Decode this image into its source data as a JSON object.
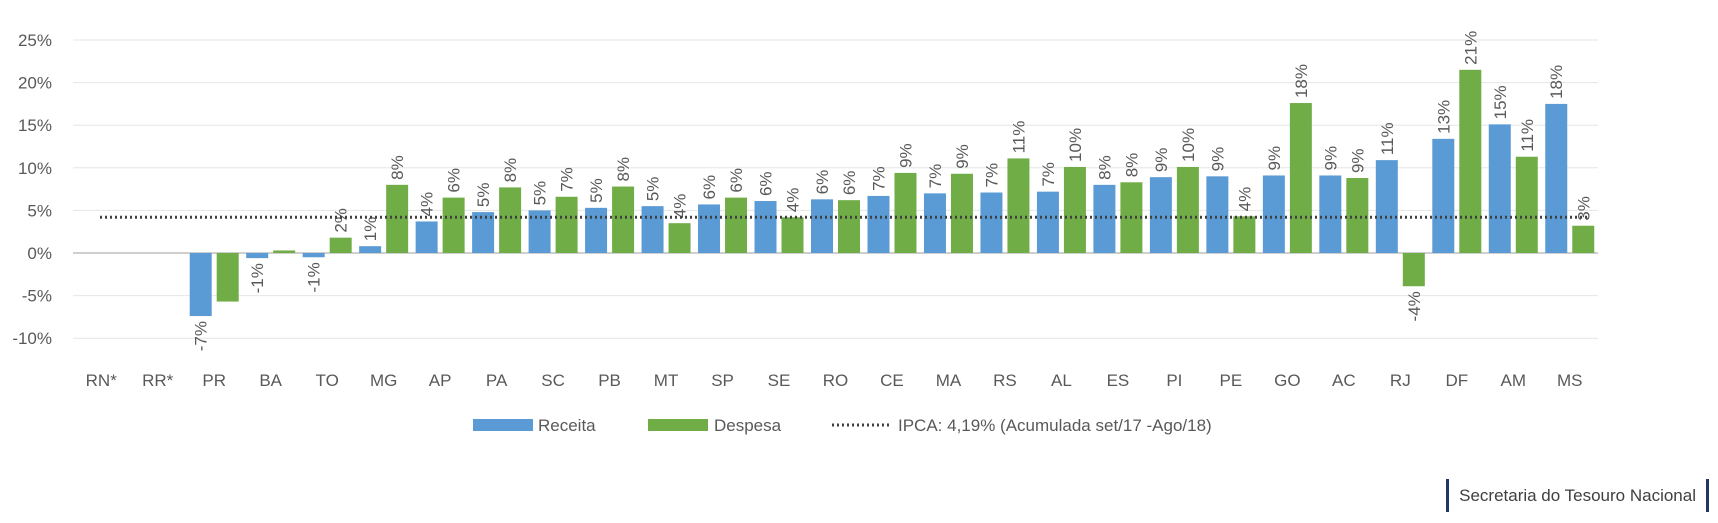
{
  "chart_data": {
    "type": "bar",
    "categories": [
      "RN*",
      "RR*",
      "PR",
      "BA",
      "TO",
      "MG",
      "AP",
      "PA",
      "SC",
      "PB",
      "MT",
      "SP",
      "SE",
      "RO",
      "CE",
      "MA",
      "RS",
      "AL",
      "ES",
      "PI",
      "PE",
      "GO",
      "AC",
      "RJ",
      "DF",
      "AM",
      "MS"
    ],
    "series": [
      {
        "name": "Receita",
        "color": "#5b9bd5",
        "values": [
          null,
          null,
          -7.4,
          -0.6,
          -0.5,
          0.8,
          3.7,
          4.8,
          5.0,
          5.3,
          5.5,
          5.7,
          6.1,
          6.3,
          6.7,
          7.0,
          7.1,
          7.2,
          8.0,
          8.9,
          9.0,
          9.1,
          9.1,
          10.9,
          13.4,
          15.1,
          17.5
        ],
        "labels": [
          "",
          "",
          "-7%",
          "-1%",
          "-1%",
          "1%",
          "4%",
          "5%",
          "5%",
          "5%",
          "5%",
          "6%",
          "6%",
          "6%",
          "7%",
          "7%",
          "7%",
          "7%",
          "8%",
          "9%",
          "9%",
          "9%",
          "9%",
          "11%",
          "13%",
          "15%",
          "18%"
        ]
      },
      {
        "name": "Despesa",
        "color": "#70ad47",
        "values": [
          null,
          null,
          -5.7,
          0.3,
          1.8,
          8.0,
          6.5,
          7.7,
          6.6,
          7.8,
          3.5,
          6.5,
          4.2,
          6.2,
          9.4,
          9.3,
          11.1,
          10.1,
          8.3,
          10.1,
          4.3,
          17.6,
          8.8,
          -3.9,
          21.5,
          11.3,
          3.2
        ],
        "labels": [
          "",
          "",
          "",
          "",
          "2%",
          "8%",
          "6%",
          "8%",
          "7%",
          "8%",
          "4%",
          "6%",
          "4%",
          "6%",
          "9%",
          "9%",
          "11%",
          "10%",
          "8%",
          "10%",
          "4%",
          "18%",
          "9%",
          "-4%",
          "21%",
          "11%",
          "3%"
        ]
      }
    ],
    "reference_line": {
      "name": "IPCA: 4,19% (Acumulada set/17 -Ago/18)",
      "value": 4.19
    },
    "yticks": [
      25,
      20,
      15,
      10,
      5,
      0,
      -5,
      -10
    ],
    "ytick_labels": [
      "25%",
      "20%",
      "15%",
      "10%",
      "5%",
      "0%",
      "-5%",
      "-10%"
    ],
    "ylim": [
      -10,
      25
    ],
    "grid": true,
    "legend_position": "bottom"
  },
  "footer": {
    "text": "Secretaria do Tesouro Nacional"
  }
}
